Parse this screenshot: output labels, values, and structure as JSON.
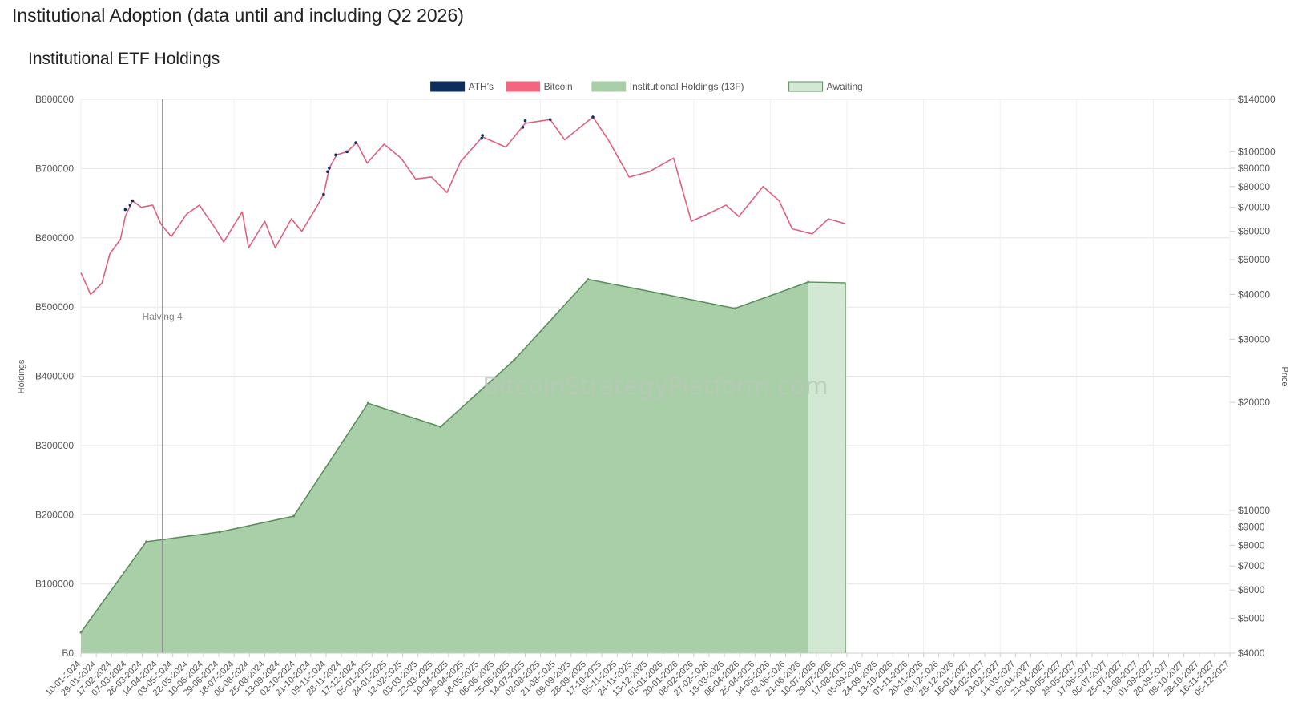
{
  "page": {
    "title": "Institutional Adoption (data until and including Q2 2026)"
  },
  "chart_data": {
    "type": "area",
    "title": "Institutional ETF Holdings",
    "ylabel": "Holdings",
    "y2label": "Price",
    "watermark": "BitcoinStrategyPlatform.com",
    "legend_position": "top-center",
    "grid": true,
    "legend": [
      {
        "name": "ATH's",
        "color": "#0d2e5c"
      },
      {
        "name": "Bitcoin",
        "color": "#f2667f"
      },
      {
        "name": "Institutional Holdings (13F)",
        "color": "#a9cfa9"
      },
      {
        "name": "Awaiting",
        "color": "#d2e8d2"
      }
    ],
    "y_left": {
      "ticks": [
        "B0",
        "B100000",
        "B200000",
        "B300000",
        "B400000",
        "B500000",
        "B600000",
        "B700000",
        "B800000"
      ],
      "range": [
        0,
        800000
      ]
    },
    "y_right": {
      "scale": "log",
      "range": [
        4000,
        140000
      ],
      "ticks": [
        {
          "value": 4000,
          "label": "$4000"
        },
        {
          "value": 5000,
          "label": "$5000"
        },
        {
          "value": 6000,
          "label": "$6000"
        },
        {
          "value": 7000,
          "label": "$7000"
        },
        {
          "value": 8000,
          "label": "$8000"
        },
        {
          "value": 9000,
          "label": "$9000"
        },
        {
          "value": 10000,
          "label": "$10000"
        },
        {
          "value": 20000,
          "label": "$20000"
        },
        {
          "value": 30000,
          "label": "$30000"
        },
        {
          "value": 40000,
          "label": "$40000"
        },
        {
          "value": 50000,
          "label": "$50000"
        },
        {
          "value": 60000,
          "label": "$60000"
        },
        {
          "value": 70000,
          "label": "$70000"
        },
        {
          "value": 80000,
          "label": "$80000"
        },
        {
          "value": 90000,
          "label": "$90000"
        },
        {
          "value": 100000,
          "label": "$100000"
        },
        {
          "value": 140000,
          "label": "$140000"
        }
      ]
    },
    "x_range": [
      "2024-01-10",
      "2027-12-05"
    ],
    "x_ticks": [
      "10-01-2024",
      "29-01-2024",
      "17-02-2024",
      "07-03-2024",
      "26-03-2024",
      "14-04-2024",
      "03-05-2024",
      "22-05-2024",
      "10-06-2024",
      "29-06-2024",
      "18-07-2024",
      "06-08-2024",
      "25-08-2024",
      "13-09-2024",
      "02-10-2024",
      "21-10-2024",
      "09-11-2024",
      "28-11-2024",
      "17-12-2024",
      "05-01-2025",
      "24-01-2025",
      "12-02-2025",
      "03-03-2025",
      "22-03-2025",
      "10-04-2025",
      "29-04-2025",
      "18-05-2025",
      "06-06-2025",
      "25-06-2025",
      "14-07-2025",
      "02-08-2025",
      "21-08-2025",
      "09-09-2025",
      "28-09-2025",
      "17-10-2025",
      "05-11-2025",
      "24-11-2025",
      "13-12-2025",
      "01-01-2026",
      "20-01-2026",
      "08-02-2026",
      "27-02-2026",
      "18-03-2026",
      "06-04-2026",
      "25-04-2026",
      "14-05-2026",
      "02-06-2026",
      "21-06-2026",
      "10-07-2026",
      "29-07-2026",
      "17-08-2026",
      "05-09-2026",
      "24-09-2026",
      "13-10-2026",
      "01-11-2026",
      "20-11-2026",
      "09-12-2026",
      "28-12-2026",
      "16-01-2027",
      "04-02-2027",
      "23-02-2027",
      "14-03-2027",
      "02-04-2027",
      "21-04-2027",
      "10-05-2027",
      "29-05-2027",
      "17-06-2027",
      "06-07-2027",
      "25-07-2027",
      "13-08-2027",
      "01-09-2027",
      "20-09-2027",
      "09-10-2027",
      "28-10-2027",
      "16-11-2027",
      "05-12-2027"
    ],
    "annotations": [
      {
        "label": "Halving 4",
        "date": "2024-04-20"
      }
    ],
    "series": [
      {
        "name": "Institutional Holdings (13F)",
        "color": "#a9cfa9",
        "line_color": "#5e8f5e",
        "points": [
          {
            "x": "2024-01-10",
            "y": 30000
          },
          {
            "x": "2024-03-31",
            "y": 161000
          },
          {
            "x": "2024-06-30",
            "y": 175000
          },
          {
            "x": "2024-09-30",
            "y": 198000
          },
          {
            "x": "2024-12-31",
            "y": 361000
          },
          {
            "x": "2025-03-31",
            "y": 327000
          },
          {
            "x": "2025-06-30",
            "y": 423000
          },
          {
            "x": "2025-09-30",
            "y": 540000
          },
          {
            "x": "2025-12-31",
            "y": 519000
          },
          {
            "x": "2026-03-31",
            "y": 498000
          },
          {
            "x": "2026-06-30",
            "y": 536000
          }
        ]
      },
      {
        "name": "Awaiting",
        "color": "#d2e8d2",
        "line_color": "#5e8f5e",
        "points": [
          {
            "x": "2026-06-30",
            "y": 536000
          },
          {
            "x": "2026-08-15",
            "y": 535000
          },
          {
            "x": "2026-08-15",
            "y": 0
          }
        ]
      },
      {
        "name": "Bitcoin",
        "color": "#e0607e",
        "points": [
          {
            "x": "2024-01-10",
            "y": 46000
          },
          {
            "x": "2024-01-22",
            "y": 40000
          },
          {
            "x": "2024-02-05",
            "y": 43000
          },
          {
            "x": "2024-02-15",
            "y": 52000
          },
          {
            "x": "2024-02-28",
            "y": 57000
          },
          {
            "x": "2024-03-05",
            "y": 66000
          },
          {
            "x": "2024-03-14",
            "y": 73000
          },
          {
            "x": "2024-03-25",
            "y": 70000
          },
          {
            "x": "2024-04-08",
            "y": 71000
          },
          {
            "x": "2024-04-18",
            "y": 63000
          },
          {
            "x": "2024-05-01",
            "y": 58000
          },
          {
            "x": "2024-05-20",
            "y": 67000
          },
          {
            "x": "2024-06-05",
            "y": 71000
          },
          {
            "x": "2024-06-25",
            "y": 61000
          },
          {
            "x": "2024-07-05",
            "y": 56000
          },
          {
            "x": "2024-07-28",
            "y": 68000
          },
          {
            "x": "2024-08-05",
            "y": 54000
          },
          {
            "x": "2024-08-25",
            "y": 64000
          },
          {
            "x": "2024-09-07",
            "y": 54000
          },
          {
            "x": "2024-09-27",
            "y": 65000
          },
          {
            "x": "2024-10-10",
            "y": 60000
          },
          {
            "x": "2024-10-28",
            "y": 70000
          },
          {
            "x": "2024-11-06",
            "y": 76000
          },
          {
            "x": "2024-11-13",
            "y": 90000
          },
          {
            "x": "2024-11-22",
            "y": 98000
          },
          {
            "x": "2024-12-05",
            "y": 100000
          },
          {
            "x": "2024-12-17",
            "y": 106000
          },
          {
            "x": "2024-12-30",
            "y": 93000
          },
          {
            "x": "2025-01-20",
            "y": 105000
          },
          {
            "x": "2025-02-10",
            "y": 96000
          },
          {
            "x": "2025-02-28",
            "y": 84000
          },
          {
            "x": "2025-03-20",
            "y": 85000
          },
          {
            "x": "2025-04-08",
            "y": 77000
          },
          {
            "x": "2025-04-25",
            "y": 94000
          },
          {
            "x": "2025-05-22",
            "y": 110000
          },
          {
            "x": "2025-06-20",
            "y": 103000
          },
          {
            "x": "2025-07-14",
            "y": 120000
          },
          {
            "x": "2025-08-14",
            "y": 123000
          },
          {
            "x": "2025-09-01",
            "y": 108000
          },
          {
            "x": "2025-10-06",
            "y": 125000
          },
          {
            "x": "2025-10-25",
            "y": 108000
          },
          {
            "x": "2025-11-20",
            "y": 85000
          },
          {
            "x": "2025-12-15",
            "y": 88000
          },
          {
            "x": "2026-01-14",
            "y": 96000
          },
          {
            "x": "2026-02-05",
            "y": 64000
          },
          {
            "x": "2026-02-25",
            "y": 67000
          },
          {
            "x": "2026-03-20",
            "y": 71000
          },
          {
            "x": "2026-04-05",
            "y": 66000
          },
          {
            "x": "2026-05-05",
            "y": 80000
          },
          {
            "x": "2026-05-25",
            "y": 73000
          },
          {
            "x": "2026-06-10",
            "y": 61000
          },
          {
            "x": "2026-07-05",
            "y": 59000
          },
          {
            "x": "2026-07-25",
            "y": 65000
          },
          {
            "x": "2026-08-15",
            "y": 63000
          }
        ]
      },
      {
        "name": "ATH's",
        "color": "#0d2e5c",
        "points": [
          {
            "x": "2024-03-05",
            "y": 69000
          },
          {
            "x": "2024-03-11",
            "y": 71000
          },
          {
            "x": "2024-03-14",
            "y": 73000
          },
          {
            "x": "2024-11-06",
            "y": 76000
          },
          {
            "x": "2024-11-11",
            "y": 88000
          },
          {
            "x": "2024-11-13",
            "y": 90000
          },
          {
            "x": "2024-11-21",
            "y": 98000
          },
          {
            "x": "2024-12-05",
            "y": 100000
          },
          {
            "x": "2024-12-16",
            "y": 106000
          },
          {
            "x": "2025-05-21",
            "y": 109000
          },
          {
            "x": "2025-05-22",
            "y": 111000
          },
          {
            "x": "2025-07-11",
            "y": 117000
          },
          {
            "x": "2025-07-14",
            "y": 122000
          },
          {
            "x": "2025-08-14",
            "y": 123000
          },
          {
            "x": "2025-10-06",
            "y": 125000
          }
        ]
      }
    ]
  }
}
